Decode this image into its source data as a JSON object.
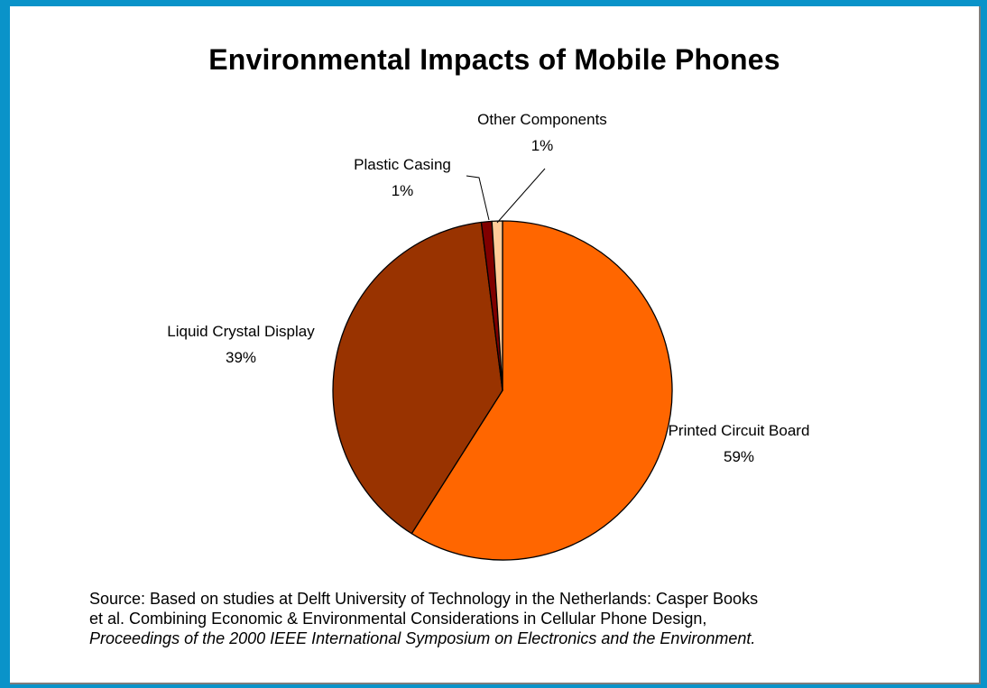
{
  "chart_data": {
    "type": "pie",
    "title": "Environmental Impacts of Mobile Phones",
    "slices": [
      {
        "label": "Printed Circuit Board",
        "value": 59,
        "value_label": "59%",
        "color": "#ff6600"
      },
      {
        "label": "Liquid Crystal Display",
        "value": 39,
        "value_label": "39%",
        "color": "#993300"
      },
      {
        "label": "Plastic Casing",
        "value": 1,
        "value_label": "1%",
        "color": "#800000"
      },
      {
        "label": "Other Components",
        "value": 1,
        "value_label": "1%",
        "color": "#ffcc99"
      }
    ],
    "legend": "none",
    "start": "top, clockwise"
  },
  "source": {
    "line1": "Source: Based on studies at Delft University of Technology in the Netherlands: Casper Books",
    "line2": "et al. Combining Economic & Environmental Considerations in Cellular Phone Design,",
    "line3": "Proceedings of the 2000 IEEE International Symposium on Electronics and the Environment."
  },
  "colors": {
    "frame": "#0a93c9",
    "slide": "#ffffff",
    "shadow": "#7d7d7d"
  }
}
